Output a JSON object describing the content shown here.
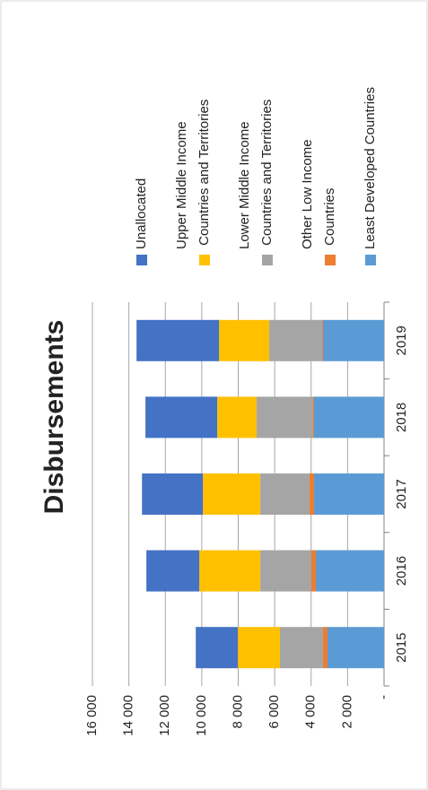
{
  "chart_data": {
    "type": "stacked-bar",
    "title": "Disbursements",
    "categories": [
      "2015",
      "2016",
      "2017",
      "2018",
      "2019"
    ],
    "series": [
      {
        "name": "Unallocated",
        "color": "#4472c4",
        "values": [
          2310,
          2905,
          3340,
          3940,
          4530
        ]
      },
      {
        "name": "Upper Middle Income Countries and Territories",
        "color": "#ffc000",
        "values": [
          2310,
          3345,
          3150,
          2160,
          2750
        ]
      },
      {
        "name": "Lower Middle Income Countries and Territories",
        "color": "#a5a5a5",
        "values": [
          2360,
          2800,
          2700,
          3100,
          2900
        ]
      },
      {
        "name": "Other Low Income Countries",
        "color": "#ed7d31",
        "values": [
          250,
          250,
          250,
          50,
          50
        ]
      },
      {
        "name": "Least Developed Countries",
        "color": "#5b9bd5",
        "values": [
          3100,
          3740,
          3840,
          3840,
          3350
        ]
      }
    ],
    "ylim": [
      0,
      16000
    ],
    "yticks": [
      {
        "value": 0,
        "label": "-"
      },
      {
        "value": 2000,
        "label": "2 000"
      },
      {
        "value": 4000,
        "label": "4 000"
      },
      {
        "value": 6000,
        "label": "6 000"
      },
      {
        "value": 8000,
        "label": "8 000"
      },
      {
        "value": 10000,
        "label": "10 000"
      },
      {
        "value": 12000,
        "label": "12 000"
      },
      {
        "value": 14000,
        "label": "14 000"
      },
      {
        "value": 16000,
        "label": "16 000"
      }
    ],
    "grid": true
  }
}
